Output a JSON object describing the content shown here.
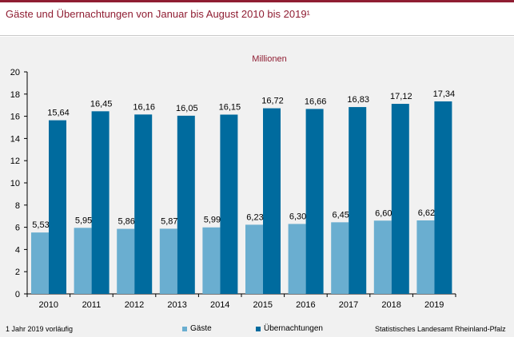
{
  "title": "Gäste und Übernachtungen von Januar bis August 2010 bis 2019¹",
  "footnote": "1 Jahr 2019 vorläufig",
  "source": "Statistisches Landesamt Rheinland-Pfalz",
  "colors": {
    "accent": "#8f1d32",
    "gaeste": "#6aaed0",
    "uebernachtungen": "#006b9e",
    "panel": "#f1f1f1"
  },
  "chart_data": {
    "type": "bar",
    "unit_label": "Millionen",
    "categories": [
      "2010",
      "2011",
      "2012",
      "2013",
      "2014",
      "2015",
      "2016",
      "2017",
      "2018",
      "2019"
    ],
    "series": [
      {
        "name": "Gäste",
        "values": [
          5.53,
          5.95,
          5.86,
          5.87,
          5.99,
          6.23,
          6.3,
          6.45,
          6.6,
          6.62
        ],
        "labels": [
          "5,53",
          "5,95",
          "5,86",
          "5,87",
          "5,99",
          "6,23",
          "6,30",
          "6,45",
          "6,60",
          "6,62"
        ]
      },
      {
        "name": "Übernachtungen",
        "values": [
          15.64,
          16.45,
          16.16,
          16.05,
          16.15,
          16.72,
          16.66,
          16.83,
          17.12,
          17.34
        ],
        "labels": [
          "15,64",
          "16,45",
          "16,16",
          "16,05",
          "16,15",
          "16,72",
          "16,66",
          "16,83",
          "17,12",
          "17,34"
        ]
      }
    ],
    "ylim": [
      0,
      20
    ],
    "yticks": [
      "0",
      "2",
      "4",
      "6",
      "8",
      "10",
      "12",
      "14",
      "16",
      "18",
      "20"
    ],
    "legend_position": "bottom",
    "grid": false
  }
}
